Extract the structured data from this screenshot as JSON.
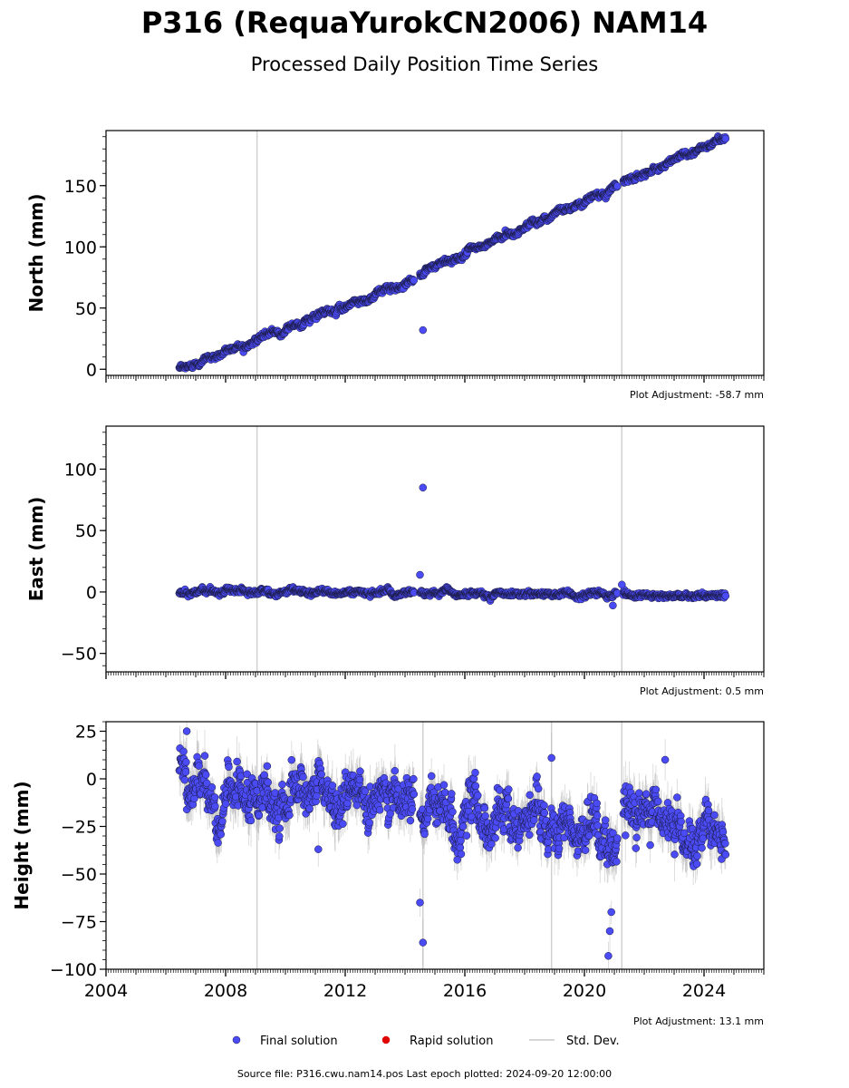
{
  "figure": {
    "title": "P316 (RequaYurokCN2006) NAM14",
    "subtitle": "Processed Daily Position Time Series",
    "source_text": "Source file: P316.cwu.nam14.pos  Last epoch plotted: 2024-09-20 12:00:00"
  },
  "legend": {
    "items": [
      {
        "label": "Final solution",
        "color": "#4b4bf5",
        "kind": "dot"
      },
      {
        "label": "Rapid solution",
        "color": "#e00000",
        "kind": "dot"
      },
      {
        "label": "Std. Dev.",
        "color": "#c8c8c8",
        "kind": "line"
      }
    ]
  },
  "colors": {
    "final": "#4b4bf5",
    "final_edge": "#1a1a40",
    "stddev": "#b0b0b0",
    "vline": "#d0d0d0"
  },
  "chart_data": [
    {
      "type": "scatter",
      "ylabel": "North (mm)",
      "xlabel": "",
      "adjustment": "Plot Adjustment: -58.7 mm",
      "xlim": [
        2004,
        2026
      ],
      "ylim": [
        -5,
        195
      ],
      "yticks": [
        0,
        50,
        100,
        150
      ],
      "ytick_labels": [
        "0",
        "50",
        "100",
        "150"
      ],
      "show_x_labels": false,
      "vlines": [
        2009.05,
        2021.25
      ],
      "segments": [
        {
          "x0": 2006.45,
          "x1": 2014.3,
          "y0": 0,
          "y1": 73
        },
        {
          "x0": 2014.5,
          "x1": 2021.1,
          "y0": 78,
          "y1": 150
        },
        {
          "x0": 2021.3,
          "x1": 2024.72,
          "y0": 153,
          "y1": 189
        }
      ],
      "noise": 1.6,
      "outliers": [
        [
          2014.6,
          32
        ]
      ]
    },
    {
      "type": "scatter",
      "ylabel": "East (mm)",
      "xlabel": "",
      "adjustment": "Plot Adjustment: 0.5 mm",
      "xlim": [
        2004,
        2026
      ],
      "ylim": [
        -65,
        135
      ],
      "yticks": [
        -50,
        0,
        50,
        100
      ],
      "ytick_labels": [
        "−50",
        "0",
        "50",
        "100"
      ],
      "show_x_labels": false,
      "vlines": [
        2009.05,
        2021.25
      ],
      "segments": [
        {
          "x0": 2006.45,
          "x1": 2014.3,
          "y0": 0,
          "y1": -1
        },
        {
          "x0": 2014.5,
          "x1": 2021.1,
          "y0": -1,
          "y1": -2
        },
        {
          "x0": 2021.3,
          "x1": 2024.72,
          "y0": -2,
          "y1": -3
        }
      ],
      "noise": 1.4,
      "outliers": [
        [
          2014.6,
          85
        ],
        [
          2014.5,
          14
        ],
        [
          2020.95,
          -11
        ],
        [
          2021.25,
          6
        ]
      ]
    },
    {
      "type": "scatter",
      "ylabel": "Height (mm)",
      "xlabel": "",
      "adjustment": "Plot Adjustment: 13.1 mm",
      "xlim": [
        2004,
        2026
      ],
      "ylim": [
        -100,
        30
      ],
      "yticks": [
        -100,
        -75,
        -50,
        -25,
        0,
        25
      ],
      "ytick_labels": [
        "−100",
        "−75",
        "−50",
        "−25",
        "0",
        "25"
      ],
      "show_x_labels": true,
      "xticks": [
        2004,
        2008,
        2012,
        2016,
        2020,
        2024
      ],
      "xtick_labels": [
        "2004",
        "2008",
        "2012",
        "2016",
        "2020",
        "2024"
      ],
      "vlines": [
        2009.05,
        2014.6,
        2018.9,
        2021.25
      ],
      "segments": [
        {
          "x0": 2006.45,
          "x1": 2014.3,
          "y0": -2,
          "y1": -15
        },
        {
          "x0": 2014.5,
          "x1": 2021.1,
          "y0": -18,
          "y1": -28
        },
        {
          "x0": 2021.3,
          "x1": 2024.72,
          "y0": -22,
          "y1": -28
        }
      ],
      "noise": 8,
      "outliers": [
        [
          2006.7,
          25
        ],
        [
          2011.1,
          -37
        ],
        [
          2014.5,
          -65
        ],
        [
          2014.6,
          -86
        ],
        [
          2018.9,
          11
        ],
        [
          2022.7,
          10
        ],
        [
          2020.8,
          -93
        ],
        [
          2020.85,
          -80
        ],
        [
          2020.9,
          -70
        ]
      ]
    }
  ]
}
